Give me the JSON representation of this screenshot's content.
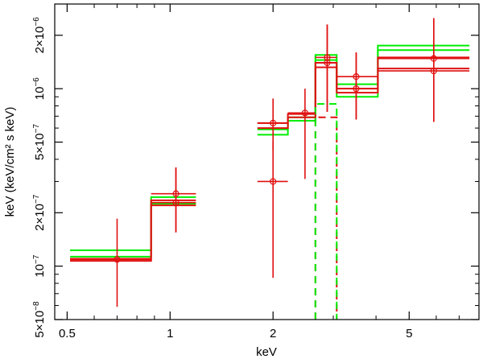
{
  "chart_data": {
    "type": "line",
    "xlabel": "keV",
    "ylabel": "keV (keV/cm² s keV)",
    "x_scale": "log",
    "y_scale": "log",
    "xlim": [
      0.46,
      8.0
    ],
    "ylim": [
      5e-08,
      3e-06
    ],
    "x_ticks": [
      {
        "value": 0.5,
        "label": "0.5"
      },
      {
        "value": 1,
        "label": "1"
      },
      {
        "value": 2,
        "label": "2"
      },
      {
        "value": 5,
        "label": "5"
      }
    ],
    "y_ticks": [
      {
        "value": 5e-08,
        "base": "5×10",
        "exp": "−8"
      },
      {
        "value": 1e-07,
        "base": "10",
        "exp": "−7"
      },
      {
        "value": 2e-07,
        "base": "2×10",
        "exp": "−7"
      },
      {
        "value": 5e-07,
        "base": "5×10",
        "exp": "−7"
      },
      {
        "value": 1e-06,
        "base": "10",
        "exp": "−6"
      },
      {
        "value": 2e-06,
        "base": "2×10",
        "exp": "−6"
      }
    ],
    "grid": false,
    "colors": {
      "data": "#e01010",
      "model": "#00ee00",
      "frame": "#000000"
    },
    "data_points": [
      {
        "x": 0.7,
        "xerr": [
          0.51,
          0.88
        ],
        "y": 1.09e-07,
        "yerr": [
          5.9e-08,
          1.85e-07
        ]
      },
      {
        "x": 1.04,
        "xerr": [
          0.88,
          1.19
        ],
        "y": 2.56e-07,
        "yerr": [
          1.55e-07,
          3.6e-07
        ]
      },
      {
        "x": 1.04,
        "xerr": [
          0.88,
          1.19
        ],
        "y": 2.28e-07,
        "yerr": [
          1.55e-07,
          3.6e-07
        ]
      },
      {
        "x": 2.0,
        "xerr": [
          1.8,
          2.21
        ],
        "y": 6.4e-07,
        "yerr": [
          4.5e-07,
          8.8e-07
        ]
      },
      {
        "x": 2.0,
        "xerr": [
          1.8,
          2.21
        ],
        "y": 3e-07,
        "yerr": [
          8.6e-08,
          5e-07
        ]
      },
      {
        "x": 2.48,
        "xerr": [
          2.21,
          2.66
        ],
        "y": 7.3e-07,
        "yerr": [
          3.1e-07,
          1e-06
        ]
      },
      {
        "x": 2.88,
        "xerr": [
          2.66,
          3.07
        ],
        "y": 1.5e-06,
        "yerr": [
          7.4e-07,
          2.3e-06
        ]
      },
      {
        "x": 2.88,
        "xerr": [
          2.66,
          3.07
        ],
        "y": 1.4e-06,
        "yerr": [
          7.4e-07,
          2.3e-06
        ]
      },
      {
        "x": 3.5,
        "xerr": [
          3.07,
          4.05
        ],
        "y": 1.17e-06,
        "yerr": [
          6.7e-07,
          1.6e-06
        ]
      },
      {
        "x": 3.5,
        "xerr": [
          3.07,
          4.05
        ],
        "y": 1e-06,
        "yerr": [
          6.7e-07,
          1.6e-06
        ]
      },
      {
        "x": 5.9,
        "xerr": [
          4.05,
          7.5
        ],
        "y": 1.48e-06,
        "yerr": [
          6.5e-07,
          2.5e-06
        ]
      },
      {
        "x": 5.9,
        "xerr": [
          4.05,
          7.5
        ],
        "y": 1.26e-06,
        "yerr": [
          6.5e-07,
          2.5e-06
        ]
      }
    ],
    "model_steps": [
      {
        "color": "#00ee00",
        "segments": [
          [
            0.51,
            0.88,
            1.23e-07
          ],
          [
            0.88,
            1.19,
            2.45e-07
          ],
          [
            1.8,
            2.21,
            5.9e-07
          ],
          [
            2.21,
            2.66,
            6.9e-07
          ],
          [
            2.66,
            3.07,
            1.55e-06
          ],
          [
            3.07,
            4.05,
            1.06e-06
          ],
          [
            4.05,
            7.5,
            1.75e-06
          ]
        ]
      },
      {
        "color": "#00ee00",
        "segments": [
          [
            0.51,
            0.88,
            1.13e-07
          ],
          [
            0.88,
            1.19,
            2.25e-07
          ],
          [
            1.8,
            2.21,
            5.5e-07
          ],
          [
            2.21,
            2.66,
            6.6e-07
          ],
          [
            2.66,
            3.07,
            1.45e-06
          ],
          [
            3.07,
            4.05,
            9e-07
          ],
          [
            4.05,
            7.5,
            1.65e-06
          ]
        ]
      },
      {
        "color": "#e01010",
        "segments": [
          [
            0.51,
            0.88,
            1.1e-07
          ],
          [
            0.88,
            1.19,
            2.35e-07
          ],
          [
            1.8,
            2.21,
            6.4e-07
          ],
          [
            2.21,
            2.66,
            7.2e-07
          ],
          [
            2.66,
            3.07,
            1.4e-06
          ],
          [
            3.07,
            4.05,
            1e-06
          ],
          [
            4.05,
            7.5,
            1.5e-06
          ]
        ]
      },
      {
        "color": "#e01010",
        "segments": [
          [
            0.51,
            0.88,
            1.07e-07
          ],
          [
            0.88,
            1.19,
            2.2e-07
          ],
          [
            1.8,
            2.21,
            6e-07
          ],
          [
            2.21,
            2.66,
            6.9e-07
          ],
          [
            2.66,
            3.07,
            1.32e-06
          ],
          [
            3.07,
            4.05,
            9.5e-07
          ],
          [
            4.05,
            7.5,
            1.3e-06
          ]
        ]
      }
    ],
    "line_components": [
      {
        "color": "#e01010",
        "style": "dashed",
        "bin": [
          2.66,
          3.07
        ],
        "y": 6.9e-07
      },
      {
        "color": "#00ee00",
        "style": "dashed",
        "bin": [
          2.66,
          3.07
        ],
        "y": 8.2e-07
      }
    ]
  }
}
